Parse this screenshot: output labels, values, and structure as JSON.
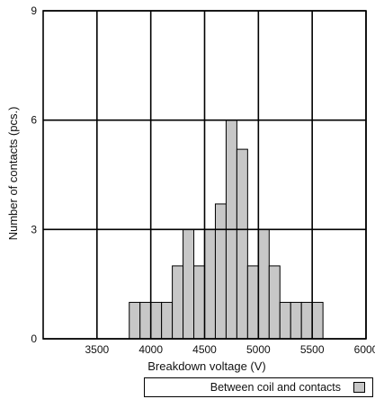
{
  "chart_data": {
    "type": "bar",
    "xlabel": "Breakdown voltage (V)",
    "ylabel": "Number of contacts (pcs.)",
    "xlim": [
      3000,
      6000
    ],
    "ylim": [
      0,
      9
    ],
    "x_ticks": [
      3500,
      4000,
      4500,
      5000,
      5500,
      6000
    ],
    "y_ticks": [
      0,
      3,
      6,
      9
    ],
    "bin_width": 100,
    "grid": true,
    "legend_position": "bottom-right",
    "series": [
      {
        "name": "Between coil and contacts",
        "color": "#c7c7c7",
        "bins": [
          3800,
          3900,
          4000,
          4100,
          4200,
          4300,
          4400,
          4500,
          4600,
          4700,
          4800,
          4900,
          5000,
          5100,
          5200,
          5300,
          5400,
          5500
        ],
        "values": [
          1,
          1,
          1,
          1,
          2,
          3,
          2,
          3,
          3.7,
          6,
          5.2,
          2,
          3,
          2,
          1,
          1,
          1,
          1
        ]
      }
    ]
  }
}
